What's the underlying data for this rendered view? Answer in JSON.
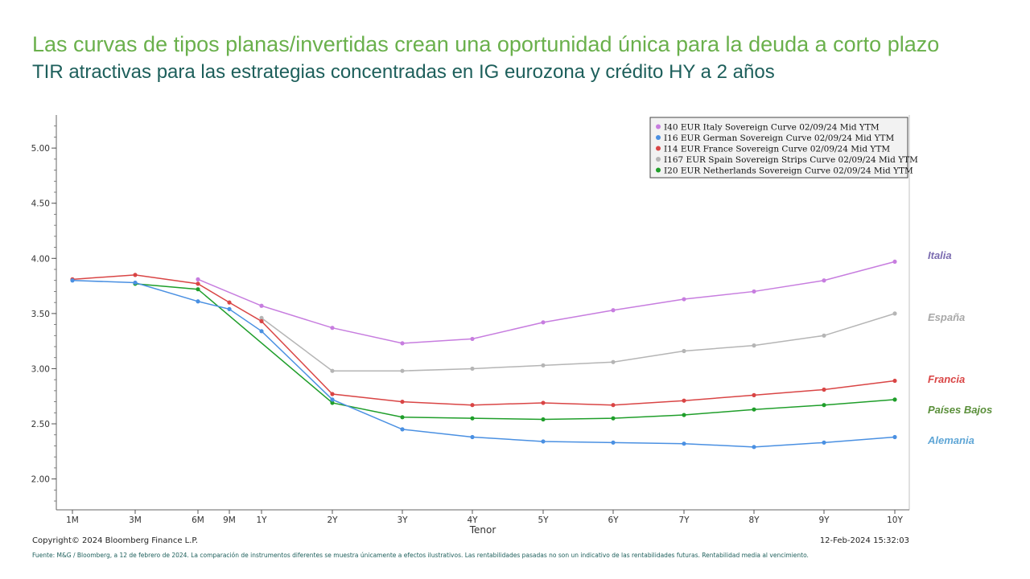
{
  "header": {
    "title": "Las curvas de tipos planas/invertidas  crean una oportunidad  única para la deuda a corto plazo",
    "subtitle": "TIR atractivas para las estrategias concentradas en IG eurozona y crédito HY a 2 años"
  },
  "footer": {
    "copyright": "Copyright© 2024 Bloomberg Finance L.P.",
    "timestamp": "12-Feb-2024 15:32:03",
    "source_note": "Fuente: M&G / Bloomberg,  a 12 de febrero  de 2024. La comparación  de instrumentos diferentes  se muestra únicamente  a efectos ilustrativos.  Las rentabilidades  pasadas no son un indicativo de las rentabilidades  futuras.  Rentabilidad media al vencimiento."
  },
  "chart_data": {
    "type": "line",
    "xlabel": "Tenor",
    "ylabel": "",
    "categories": [
      "1M",
      "3M",
      "6M",
      "9M",
      "1Y",
      "2Y",
      "3Y",
      "4Y",
      "5Y",
      "6Y",
      "7Y",
      "8Y",
      "9Y",
      "10Y"
    ],
    "x_years": [
      0.0833,
      0.25,
      0.5,
      0.75,
      1,
      2,
      3,
      4,
      5,
      6,
      7,
      8,
      9,
      10
    ],
    "ylim": [
      1.72,
      5.3
    ],
    "yticks": [
      "2.00",
      "2.50",
      "3.00",
      "3.50",
      "4.00",
      "4.50",
      "5.00"
    ],
    "grid": false,
    "legend_position": "top-right",
    "series": [
      {
        "name": "I40 EUR Italy Sovereign Curve 02/09/24 Mid YTM",
        "label": "Italia",
        "color": "#c77ddf",
        "label_color": "#7b6cb0",
        "values": [
          null,
          null,
          3.81,
          null,
          3.57,
          3.37,
          3.23,
          3.27,
          3.42,
          3.53,
          3.63,
          3.7,
          3.8,
          3.97
        ]
      },
      {
        "name": "I16 EUR German Sovereign Curve 02/09/24 Mid YTM",
        "label": "Alemania",
        "color": "#4a90e2",
        "label_color": "#5fa6d6",
        "values": [
          3.8,
          3.78,
          3.61,
          3.54,
          3.34,
          2.72,
          2.45,
          2.38,
          2.34,
          2.33,
          2.32,
          2.29,
          2.33,
          2.38
        ]
      },
      {
        "name": "I14 EUR France Sovereign Curve 02/09/24 Mid YTM",
        "label": "Francia",
        "color": "#d94545",
        "label_color": "#d94545",
        "values": [
          3.81,
          3.85,
          3.77,
          3.6,
          3.43,
          2.77,
          2.7,
          2.67,
          2.69,
          2.67,
          2.71,
          2.76,
          2.81,
          2.89
        ]
      },
      {
        "name": "I167 EUR Spain Sovereign Strips Curve 02/09/24 Mid YTM",
        "label": "España",
        "color": "#b5b5b5",
        "label_color": "#a8a8a8",
        "values": [
          null,
          null,
          null,
          null,
          3.46,
          2.98,
          2.98,
          3.0,
          3.03,
          3.06,
          3.16,
          3.21,
          3.3,
          3.5
        ]
      },
      {
        "name": "I20 EUR Netherlands Sovereign Curve 02/09/24 Mid YTM",
        "label": "Países Bajos",
        "color": "#1f9e2a",
        "label_color": "#5a8f3a",
        "values": [
          null,
          3.77,
          3.72,
          null,
          null,
          2.69,
          2.56,
          2.55,
          2.54,
          2.55,
          2.58,
          2.63,
          2.67,
          2.72
        ]
      }
    ]
  }
}
